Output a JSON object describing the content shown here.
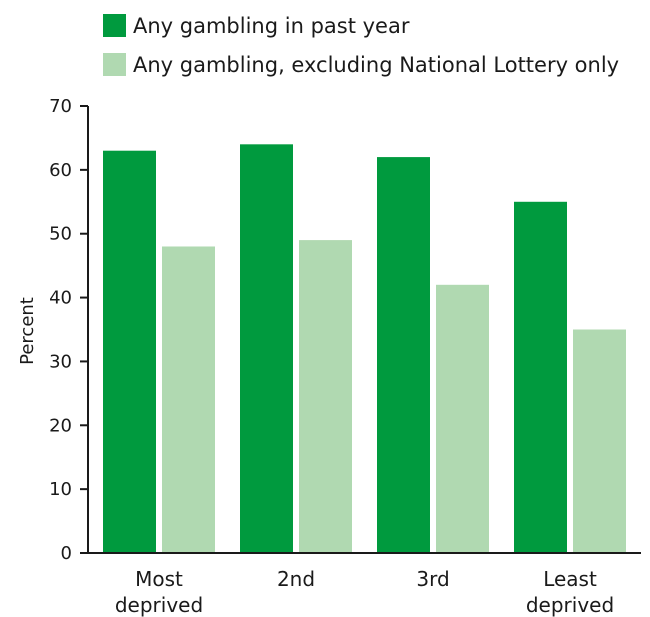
{
  "chart_data": {
    "type": "bar",
    "categories": [
      [
        "Most",
        "deprived"
      ],
      [
        "2nd"
      ],
      [
        "3rd"
      ],
      [
        "Least",
        "deprived"
      ]
    ],
    "series": [
      {
        "name": "Any gambling in past year",
        "values": [
          63,
          64,
          62,
          55
        ],
        "color": "#009a3e"
      },
      {
        "name": "Any gambling, excluding National Lottery only",
        "values": [
          48,
          49,
          42,
          35
        ],
        "color": "#b0d9b1"
      }
    ],
    "ylabel": "Percent",
    "xlabel": "",
    "ylim": [
      0,
      70
    ],
    "yticks": [
      0,
      10,
      20,
      30,
      40,
      50,
      60,
      70
    ],
    "legend_position": "top",
    "grid": false
  }
}
